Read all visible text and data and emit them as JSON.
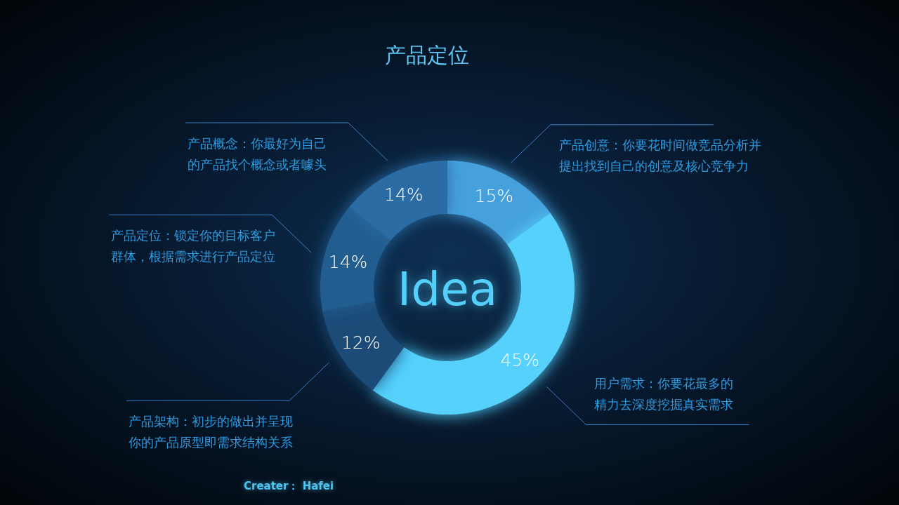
{
  "chart_data": {
    "type": "donut",
    "title": "产品定位",
    "categories": [
      "产品创意：你要花时间做竞品分析并提出找到自己的创意及核心竞争力",
      "用户需求：你要花最多的精力去深度挖掘真实需求",
      "产品架构：初步的做出并呈现你的产品原型即需求结构关系",
      "产品定位：锁定你的目标客户群体，根据需求进行产品定位",
      "产品概念：你最好为自己的产品找个概念或者噱头"
    ],
    "values": [
      15,
      45,
      12,
      14,
      14
    ],
    "value_labels": [
      "15%",
      "45%",
      "12%",
      "14%",
      "14%"
    ],
    "colors": [
      "#44a0dc",
      "#55d1fc",
      "#1c4c78",
      "#225d90",
      "#2a6ca3"
    ],
    "annotations": [
      "Idea",
      "Creater： Hafei"
    ]
  }
}
